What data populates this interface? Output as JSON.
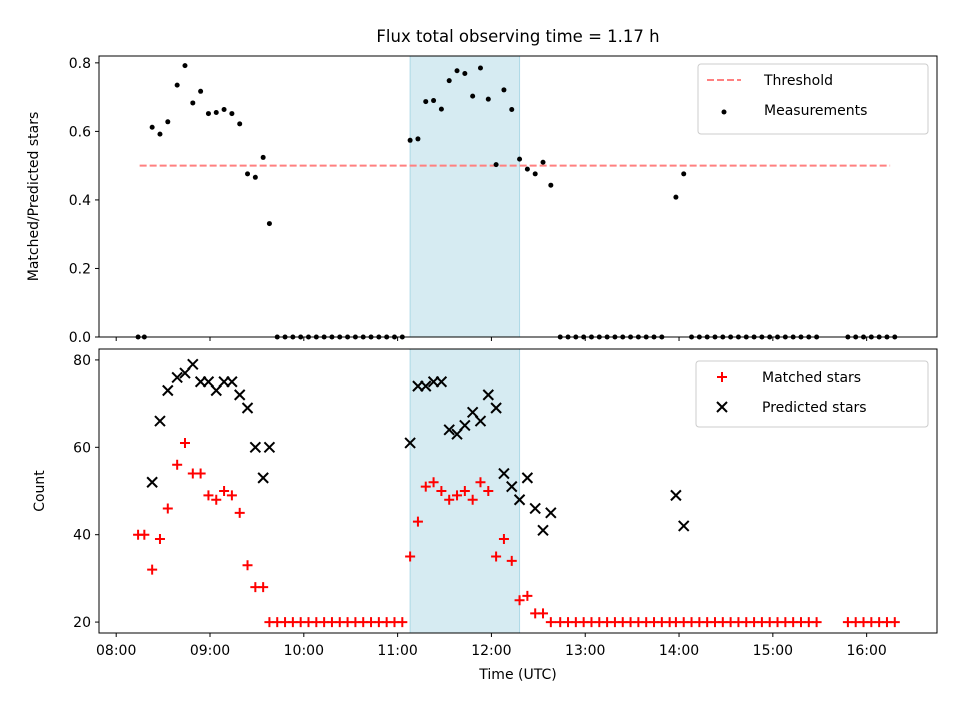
{
  "title": "Flux total observing time = 1.17 h",
  "chart_data": [
    {
      "type": "scatter",
      "ylabel": "Matched/Predicted stars",
      "ylim": [
        0,
        0.82
      ],
      "yticks": [
        0.0,
        0.2,
        0.4,
        0.6,
        0.8
      ],
      "ytick_labels": [
        "0.0",
        "0.2",
        "0.4",
        "0.6",
        "0.8"
      ],
      "xlim": [
        "07:49",
        "16:45"
      ],
      "xticks": [
        "08:00",
        "09:00",
        "10:00",
        "11:00",
        "12:00",
        "13:00",
        "14:00",
        "15:00",
        "16:00"
      ],
      "highlight_span": [
        "11:08",
        "12:18"
      ],
      "threshold": {
        "name": "Threshold",
        "value": 0.5,
        "x": [
          "08:15",
          "16:15"
        ],
        "color": "#ff8080"
      },
      "legend_position": "top-right",
      "series": [
        {
          "name": "Measurements",
          "marker": "dot",
          "color": "#000000",
          "points": [
            [
              "08:14",
              0.0
            ],
            [
              "08:18",
              0.0
            ],
            [
              "08:23",
              0.612
            ],
            [
              "08:28",
              0.592
            ],
            [
              "08:33",
              0.628
            ],
            [
              "08:39",
              0.735
            ],
            [
              "08:44",
              0.792
            ],
            [
              "08:49",
              0.683
            ],
            [
              "08:54",
              0.717
            ],
            [
              "08:59",
              0.652
            ],
            [
              "09:04",
              0.655
            ],
            [
              "09:09",
              0.664
            ],
            [
              "09:14",
              0.652
            ],
            [
              "09:19",
              0.622
            ],
            [
              "09:24",
              0.476
            ],
            [
              "09:29",
              0.466
            ],
            [
              "09:34",
              0.524
            ],
            [
              "09:38",
              0.331
            ],
            [
              "09:43",
              0.0
            ],
            [
              "09:48",
              0.0
            ],
            [
              "09:53",
              0.0
            ],
            [
              "09:58",
              0.0
            ],
            [
              "10:03",
              0.0
            ],
            [
              "10:08",
              0.0
            ],
            [
              "10:13",
              0.0
            ],
            [
              "10:18",
              0.0
            ],
            [
              "10:23",
              0.0
            ],
            [
              "10:28",
              0.0
            ],
            [
              "10:33",
              0.0
            ],
            [
              "10:38",
              0.0
            ],
            [
              "10:43",
              0.0
            ],
            [
              "10:48",
              0.0
            ],
            [
              "10:53",
              0.0
            ],
            [
              "10:58",
              0.0
            ],
            [
              "11:03",
              0.0
            ],
            [
              "11:08",
              0.574
            ],
            [
              "11:13",
              0.578
            ],
            [
              "11:18",
              0.687
            ],
            [
              "11:23",
              0.69
            ],
            [
              "11:28",
              0.665
            ],
            [
              "11:33",
              0.748
            ],
            [
              "11:38",
              0.777
            ],
            [
              "11:43",
              0.769
            ],
            [
              "11:48",
              0.703
            ],
            [
              "11:53",
              0.785
            ],
            [
              "11:58",
              0.694
            ],
            [
              "12:03",
              0.503
            ],
            [
              "12:08",
              0.721
            ],
            [
              "12:13",
              0.664
            ],
            [
              "12:18",
              0.519
            ],
            [
              "12:23",
              0.49
            ],
            [
              "12:28",
              0.476
            ],
            [
              "12:33",
              0.51
            ],
            [
              "12:38",
              0.443
            ],
            [
              "12:44",
              0.0
            ],
            [
              "12:49",
              0.0
            ],
            [
              "12:54",
              0.0
            ],
            [
              "12:59",
              0.0
            ],
            [
              "13:04",
              0.0
            ],
            [
              "13:09",
              0.0
            ],
            [
              "13:14",
              0.0
            ],
            [
              "13:19",
              0.0
            ],
            [
              "13:24",
              0.0
            ],
            [
              "13:29",
              0.0
            ],
            [
              "13:34",
              0.0
            ],
            [
              "13:39",
              0.0
            ],
            [
              "13:44",
              0.0
            ],
            [
              "13:49",
              0.0
            ],
            [
              "13:58",
              0.408
            ],
            [
              "14:03",
              0.476
            ],
            [
              "14:08",
              0.0
            ],
            [
              "14:13",
              0.0
            ],
            [
              "14:18",
              0.0
            ],
            [
              "14:23",
              0.0
            ],
            [
              "14:28",
              0.0
            ],
            [
              "14:33",
              0.0
            ],
            [
              "14:38",
              0.0
            ],
            [
              "14:43",
              0.0
            ],
            [
              "14:48",
              0.0
            ],
            [
              "14:53",
              0.0
            ],
            [
              "14:58",
              0.0
            ],
            [
              "15:03",
              0.0
            ],
            [
              "15:08",
              0.0
            ],
            [
              "15:13",
              0.0
            ],
            [
              "15:18",
              0.0
            ],
            [
              "15:23",
              0.0
            ],
            [
              "15:28",
              0.0
            ],
            [
              "15:48",
              0.0
            ],
            [
              "15:53",
              0.0
            ],
            [
              "15:58",
              0.0
            ],
            [
              "16:03",
              0.0
            ],
            [
              "16:08",
              0.0
            ],
            [
              "16:13",
              0.0
            ],
            [
              "16:18",
              0.0
            ]
          ]
        }
      ]
    },
    {
      "type": "scatter",
      "ylabel": "Count",
      "xlabel": "Time (UTC)",
      "ylim": [
        17.5,
        82.5
      ],
      "yticks": [
        20,
        40,
        60,
        80
      ],
      "ytick_labels": [
        "20",
        "40",
        "60",
        "80"
      ],
      "xlim": [
        "07:49",
        "16:45"
      ],
      "xticks": [
        "08:00",
        "09:00",
        "10:00",
        "11:00",
        "12:00",
        "13:00",
        "14:00",
        "15:00",
        "16:00"
      ],
      "xtick_labels": [
        "08:00",
        "09:00",
        "10:00",
        "11:00",
        "12:00",
        "13:00",
        "14:00",
        "15:00",
        "16:00"
      ],
      "highlight_span": [
        "11:08",
        "12:18"
      ],
      "legend_position": "top-right",
      "series": [
        {
          "name": "Matched stars",
          "marker": "plus",
          "color": "#ff0000",
          "points": [
            [
              "08:14",
              40
            ],
            [
              "08:18",
              40
            ],
            [
              "08:23",
              32
            ],
            [
              "08:28",
              39
            ],
            [
              "08:33",
              46
            ],
            [
              "08:39",
              56
            ],
            [
              "08:44",
              61
            ],
            [
              "08:49",
              54
            ],
            [
              "08:54",
              54
            ],
            [
              "08:59",
              49
            ],
            [
              "09:04",
              48
            ],
            [
              "09:09",
              50
            ],
            [
              "09:14",
              49
            ],
            [
              "09:19",
              45
            ],
            [
              "09:24",
              33
            ],
            [
              "09:29",
              28
            ],
            [
              "09:34",
              28
            ],
            [
              "09:38",
              20
            ],
            [
              "09:43",
              20
            ],
            [
              "09:48",
              20
            ],
            [
              "09:53",
              20
            ],
            [
              "09:58",
              20
            ],
            [
              "10:03",
              20
            ],
            [
              "10:08",
              20
            ],
            [
              "10:13",
              20
            ],
            [
              "10:18",
              20
            ],
            [
              "10:23",
              20
            ],
            [
              "10:28",
              20
            ],
            [
              "10:33",
              20
            ],
            [
              "10:38",
              20
            ],
            [
              "10:43",
              20
            ],
            [
              "10:48",
              20
            ],
            [
              "10:53",
              20
            ],
            [
              "10:58",
              20
            ],
            [
              "11:03",
              20
            ],
            [
              "11:08",
              35
            ],
            [
              "11:13",
              43
            ],
            [
              "11:18",
              51
            ],
            [
              "11:23",
              52
            ],
            [
              "11:28",
              50
            ],
            [
              "11:33",
              48
            ],
            [
              "11:38",
              49
            ],
            [
              "11:43",
              50
            ],
            [
              "11:48",
              48
            ],
            [
              "11:53",
              52
            ],
            [
              "11:58",
              50
            ],
            [
              "12:03",
              35
            ],
            [
              "12:08",
              39
            ],
            [
              "12:13",
              34
            ],
            [
              "12:18",
              25
            ],
            [
              "12:23",
              26
            ],
            [
              "12:28",
              22
            ],
            [
              "12:33",
              22
            ],
            [
              "12:38",
              20
            ],
            [
              "12:44",
              20
            ],
            [
              "12:49",
              20
            ],
            [
              "12:54",
              20
            ],
            [
              "12:59",
              20
            ],
            [
              "13:04",
              20
            ],
            [
              "13:09",
              20
            ],
            [
              "13:14",
              20
            ],
            [
              "13:19",
              20
            ],
            [
              "13:24",
              20
            ],
            [
              "13:29",
              20
            ],
            [
              "13:34",
              20
            ],
            [
              "13:39",
              20
            ],
            [
              "13:44",
              20
            ],
            [
              "13:49",
              20
            ],
            [
              "13:54",
              20
            ],
            [
              "13:58",
              20
            ],
            [
              "14:03",
              20
            ],
            [
              "14:08",
              20
            ],
            [
              "14:13",
              20
            ],
            [
              "14:18",
              20
            ],
            [
              "14:23",
              20
            ],
            [
              "14:28",
              20
            ],
            [
              "14:33",
              20
            ],
            [
              "14:38",
              20
            ],
            [
              "14:43",
              20
            ],
            [
              "14:48",
              20
            ],
            [
              "14:53",
              20
            ],
            [
              "14:58",
              20
            ],
            [
              "15:03",
              20
            ],
            [
              "15:08",
              20
            ],
            [
              "15:13",
              20
            ],
            [
              "15:18",
              20
            ],
            [
              "15:23",
              20
            ],
            [
              "15:28",
              20
            ],
            [
              "15:48",
              20
            ],
            [
              "15:53",
              20
            ],
            [
              "15:58",
              20
            ],
            [
              "16:03",
              20
            ],
            [
              "16:08",
              20
            ],
            [
              "16:13",
              20
            ],
            [
              "16:18",
              20
            ]
          ]
        },
        {
          "name": "Predicted stars",
          "marker": "x",
          "color": "#000000",
          "points": [
            [
              "08:23",
              52
            ],
            [
              "08:28",
              66
            ],
            [
              "08:33",
              73
            ],
            [
              "08:39",
              76
            ],
            [
              "08:44",
              77
            ],
            [
              "08:49",
              79
            ],
            [
              "08:54",
              75
            ],
            [
              "08:59",
              75
            ],
            [
              "09:04",
              73
            ],
            [
              "09:09",
              75
            ],
            [
              "09:14",
              75
            ],
            [
              "09:19",
              72
            ],
            [
              "09:24",
              69
            ],
            [
              "09:29",
              60
            ],
            [
              "09:34",
              53
            ],
            [
              "09:38",
              60
            ],
            [
              "11:08",
              61
            ],
            [
              "11:13",
              74
            ],
            [
              "11:18",
              74
            ],
            [
              "11:23",
              75
            ],
            [
              "11:28",
              75
            ],
            [
              "11:33",
              64
            ],
            [
              "11:38",
              63
            ],
            [
              "11:43",
              65
            ],
            [
              "11:48",
              68
            ],
            [
              "11:53",
              66
            ],
            [
              "11:58",
              72
            ],
            [
              "12:03",
              69
            ],
            [
              "12:08",
              54
            ],
            [
              "12:13",
              51
            ],
            [
              "12:18",
              48
            ],
            [
              "12:23",
              53
            ],
            [
              "12:28",
              46
            ],
            [
              "12:33",
              41
            ],
            [
              "12:38",
              45
            ],
            [
              "13:58",
              49
            ],
            [
              "14:03",
              42
            ]
          ]
        }
      ]
    }
  ]
}
